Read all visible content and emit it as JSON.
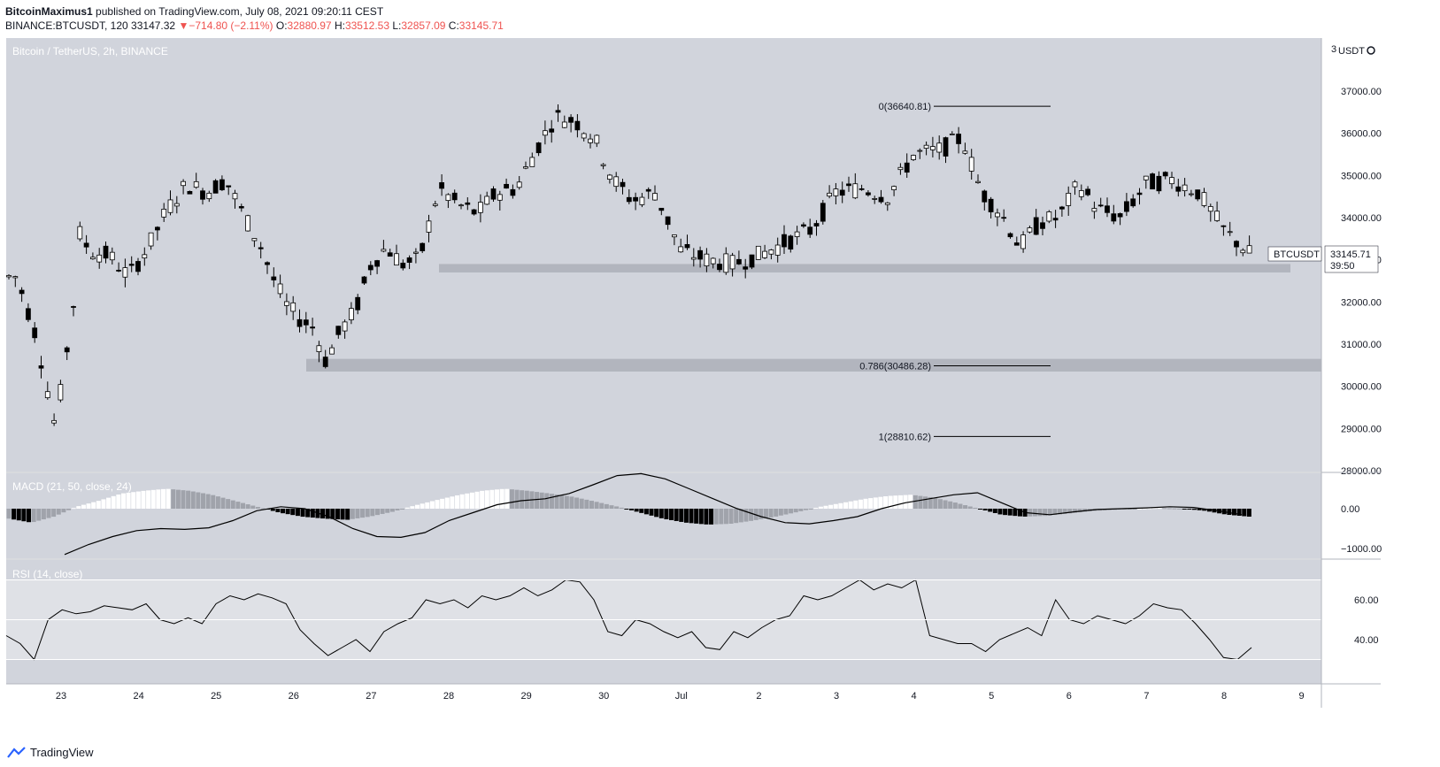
{
  "header": {
    "author": "BitcoinMaximus1",
    "published_text": "published on TradingView.com, July 08, 2021 09:20:11 CEST",
    "symbol": "BINANCE:BTCUSDT, 120",
    "last": "33147.32",
    "change_arrow": "▼",
    "change": "−714.80 (−2.11%)",
    "o_label": "O:",
    "o_value": "32880.97",
    "h_label": "H:",
    "h_value": "33512.53",
    "l_label": "L:",
    "l_value": "32857.09",
    "c_label": "C:",
    "c_value": "33145.71"
  },
  "price_pane": {
    "title": "Bitcoin / TetherUS, 2h, BINANCE",
    "currency": "USDT",
    "currency_icon": "gear-icon",
    "top_tick": "3",
    "price_tag": "BTCUSDT",
    "price_label": "33145.71",
    "countdown": "39:50"
  },
  "macd_title": "MACD (21, 50, close, 24)",
  "rsi_title": "RSI (14, close)",
  "footer": {
    "brand": "TradingView",
    "icon": "tradingview-logo"
  },
  "colors": {
    "pane_bg": "#d1d4dc",
    "rsi_band": "#dfe1e6",
    "zone": "#b2b5be",
    "ink": "#131722",
    "down": "#ef5350",
    "up_bar": "#ffffff",
    "down_bar": "#000000",
    "light_bar": "#a0a3ab"
  },
  "chart_data": [
    {
      "type": "candlestick",
      "title": "Bitcoin / TetherUS, 2h, BINANCE",
      "y_axis": {
        "unit": "USDT",
        "ticks": [
          28000,
          29000,
          30000,
          31000,
          32000,
          33000,
          34000,
          35000,
          36000,
          37000
        ],
        "range": [
          28000,
          38000
        ]
      },
      "x_axis": {
        "ticks": [
          "23",
          "24",
          "25",
          "26",
          "27",
          "28",
          "29",
          "30",
          "Jul",
          "2",
          "3",
          "4",
          "5",
          "6",
          "7",
          "8",
          "9"
        ]
      },
      "last_price": 33145.71,
      "support_zones": [
        {
          "from": 32700,
          "to": 32900
        },
        {
          "from": 30350,
          "to": 30650
        }
      ],
      "fibonacci": [
        {
          "label": "0(36640.81)",
          "price": 36640.81
        },
        {
          "label": "0.786(30486.28)",
          "price": 30486.28
        },
        {
          "label": "1(28810.62)",
          "price": 28810.62
        }
      ],
      "close_path": [
        [
          "22",
          32600
        ],
        [
          "22",
          31200
        ],
        [
          "22",
          29000
        ],
        [
          "22",
          32200
        ],
        [
          "23",
          34200
        ],
        [
          "23",
          33900
        ],
        [
          "23",
          34000
        ],
        [
          "23",
          33200
        ],
        [
          "24",
          33100
        ],
        [
          "24",
          32600
        ],
        [
          "24",
          33300
        ],
        [
          "24",
          34200
        ],
        [
          "25",
          34800
        ],
        [
          "25",
          34600
        ],
        [
          "25",
          34900
        ],
        [
          "25",
          34000
        ],
        [
          "26",
          33300
        ],
        [
          "26",
          32500
        ],
        [
          "26",
          31900
        ],
        [
          "26",
          31600
        ],
        [
          "26",
          31400
        ],
        [
          "26",
          30600
        ],
        [
          "27",
          31300
        ],
        [
          "27",
          31800
        ],
        [
          "27",
          32900
        ],
        [
          "27",
          33300
        ],
        [
          "27",
          32900
        ],
        [
          "28",
          33000
        ],
        [
          "28",
          34700
        ],
        [
          "28",
          34300
        ],
        [
          "28",
          34100
        ],
        [
          "29",
          34600
        ],
        [
          "29",
          34700
        ],
        [
          "29",
          35600
        ],
        [
          "29",
          36400
        ],
        [
          "30",
          36300
        ],
        [
          "30",
          35900
        ],
        [
          "30",
          34900
        ],
        [
          "30",
          34400
        ],
        [
          "Jul",
          34600
        ],
        [
          "Jul",
          33200
        ],
        [
          "Jul",
          33000
        ],
        [
          "2",
          32900
        ],
        [
          "2",
          33100
        ],
        [
          "2",
          33400
        ],
        [
          "3",
          33700
        ],
        [
          "3",
          34600
        ],
        [
          "3",
          34700
        ],
        [
          "4",
          34500
        ],
        [
          "4",
          35500
        ],
        [
          "4",
          35600
        ],
        [
          "5",
          35900
        ],
        [
          "5",
          34600
        ],
        [
          "5",
          34100
        ],
        [
          "5",
          33300
        ],
        [
          "6",
          33900
        ],
        [
          "6",
          34000
        ],
        [
          "6",
          34800
        ],
        [
          "6",
          34200
        ],
        [
          "7",
          34000
        ],
        [
          "7",
          34800
        ],
        [
          "7",
          34900
        ],
        [
          "8",
          34600
        ],
        [
          "8",
          33700
        ],
        [
          "8",
          33145.71
        ]
      ]
    },
    {
      "type": "histogram+line",
      "name": "MACD (21, 50, close, 24)",
      "y_axis": {
        "ticks": [
          -1000,
          0
        ]
      },
      "x_axis": {
        "ticks": [
          "23",
          "24",
          "25",
          "26",
          "27",
          "28",
          "29",
          "30",
          "Jul",
          "2",
          "3",
          "4",
          "5",
          "6",
          "7",
          "8",
          "9"
        ]
      },
      "histogram_profile": [
        -250,
        -350,
        -200,
        50,
        200,
        380,
        450,
        500,
        450,
        350,
        200,
        50,
        -100,
        -200,
        -250,
        -280,
        -200,
        -80,
        80,
        220,
        350,
        450,
        500,
        450,
        380,
        300,
        180,
        50,
        -100,
        -250,
        -350,
        -400,
        -380,
        -300,
        -200,
        -80,
        50,
        150,
        250,
        320,
        350,
        280,
        150,
        0,
        -150,
        -200,
        -180,
        -120,
        -60,
        -30,
        0,
        20,
        0,
        -50,
        -150,
        -200
      ],
      "line_profile": [
        -1150,
        -900,
        -700,
        -550,
        -500,
        -520,
        -480,
        -300,
        -50,
        50,
        0,
        -200,
        -500,
        -700,
        -720,
        -600,
        -300,
        -100,
        100,
        200,
        250,
        380,
        600,
        830,
        880,
        750,
        500,
        250,
        0,
        -200,
        -350,
        -380,
        -300,
        -200,
        0,
        150,
        250,
        350,
        400,
        150,
        -100,
        -150,
        -80,
        -20,
        0,
        20,
        50,
        30,
        -50,
        -150
      ]
    },
    {
      "type": "line",
      "name": "RSI (14, close)",
      "y_axis": {
        "ticks": [
          40,
          60
        ],
        "band": [
          30,
          70
        ]
      },
      "x_axis": {
        "ticks": [
          "23",
          "24",
          "25",
          "26",
          "27",
          "28",
          "29",
          "30",
          "Jul",
          "2",
          "3",
          "4",
          "5",
          "6",
          "7",
          "8",
          "9"
        ]
      },
      "values": [
        42,
        38,
        30,
        50,
        55,
        53,
        54,
        57,
        56,
        55,
        58,
        50,
        48,
        51,
        48,
        58,
        62,
        60,
        63,
        61,
        58,
        45,
        38,
        32,
        36,
        40,
        34,
        44,
        48,
        51,
        60,
        58,
        60,
        56,
        62,
        60,
        62,
        66,
        62,
        65,
        70,
        69,
        60,
        44,
        42,
        50,
        48,
        44,
        41,
        44,
        36,
        35,
        44,
        41,
        46,
        50,
        52,
        62,
        60,
        62,
        66,
        70,
        65,
        68,
        66,
        70,
        42,
        40,
        38,
        38,
        34,
        40,
        43,
        46,
        42,
        60,
        50,
        48,
        52,
        50,
        48,
        52,
        58,
        56,
        55,
        48,
        40,
        31,
        30,
        36
      ]
    }
  ]
}
